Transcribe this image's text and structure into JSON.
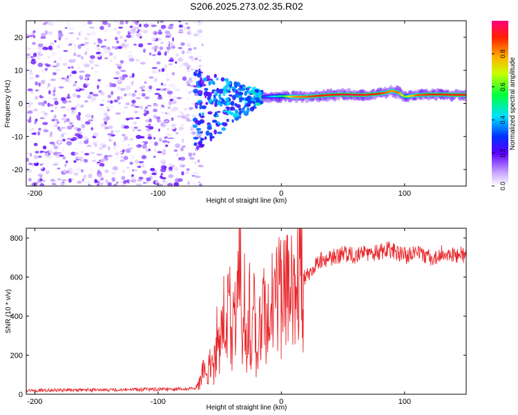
{
  "title": "S206.2025.273.02.35.R02",
  "colors": {
    "snr_line": "#e8262a",
    "axis": "#000000"
  },
  "chart_data": [
    {
      "type": "heatmap",
      "title": "S206.2025.273.02.35.R02",
      "xlabel": "Height of straight line (km)",
      "ylabel": "Frequency (Hz)",
      "xlim": [
        -207,
        150
      ],
      "ylim": [
        -25,
        25
      ],
      "xticks": [
        -200,
        -100,
        0,
        100
      ],
      "yticks": [
        -20,
        -10,
        0,
        10,
        20
      ],
      "xtick_labels": [
        "-200",
        "-100",
        "0",
        "100"
      ],
      "ytick_labels": [
        "-20",
        "-10",
        "0",
        "10",
        "20"
      ],
      "noise_region": {
        "x_from": -207,
        "x_to": -70,
        "amplitude_range": [
          0.0,
          0.2
        ]
      },
      "transition_region": {
        "x_from": -70,
        "x_to": -15,
        "frequency_spread_hz": [
          -12,
          10
        ]
      },
      "ridge": {
        "description": "narrow high-amplitude ridge near 2-3 Hz",
        "x": [
          -15,
          0,
          10,
          20,
          30,
          40,
          50,
          60,
          70,
          80,
          85,
          90,
          95,
          100,
          110,
          120,
          130,
          140,
          150
        ],
        "frequency": [
          2.0,
          2.2,
          2.0,
          2.0,
          2.3,
          2.6,
          2.7,
          2.6,
          2.6,
          3.0,
          3.3,
          3.8,
          3.3,
          2.0,
          2.5,
          2.7,
          2.7,
          2.6,
          2.6
        ],
        "amplitude": [
          0.3,
          0.5,
          0.8,
          0.85,
          0.9,
          0.9,
          0.95,
          0.95,
          0.9,
          0.9,
          0.85,
          0.8,
          0.85,
          0.6,
          0.85,
          0.9,
          0.9,
          0.9,
          0.9
        ]
      },
      "colorbar": {
        "label": "Normalized spectral amplitude",
        "range": [
          0,
          1
        ],
        "ticks": [
          0.0,
          0.2,
          0.4,
          0.6,
          0.8
        ],
        "tick_labels": [
          "0.0",
          "0.2",
          "0.4",
          "0.6",
          "0.8"
        ]
      }
    },
    {
      "type": "line",
      "xlabel": "Height of straight line (km)",
      "ylabel": "SNR (10 * v/v)",
      "xlim": [
        -207,
        150
      ],
      "ylim": [
        0,
        850
      ],
      "xticks": [
        -200,
        -100,
        0,
        100
      ],
      "yticks": [
        0,
        200,
        400,
        600,
        800
      ],
      "xtick_labels": [
        "-200",
        "-100",
        "0",
        "100"
      ],
      "ytick_labels": [
        "0",
        "200",
        "400",
        "600",
        "800"
      ],
      "series": [
        {
          "name": "SNR",
          "color": "#e8262a",
          "x": [
            -207,
            -150,
            -100,
            -70,
            -66,
            -63,
            -60,
            -57,
            -55,
            -52,
            -50,
            -47,
            -45,
            -42,
            -40,
            -38,
            -36,
            -34,
            -32,
            -30,
            -28,
            -26,
            -24,
            -22,
            -20,
            -18,
            -16,
            -14,
            -12,
            -10,
            -8,
            -5,
            -2,
            0,
            5,
            10,
            15,
            20,
            25,
            30,
            40,
            50,
            60,
            70,
            80,
            90,
            95,
            100,
            110,
            120,
            130,
            140,
            150
          ],
          "y": [
            20,
            22,
            25,
            28,
            70,
            150,
            90,
            230,
            120,
            300,
            180,
            420,
            250,
            520,
            300,
            600,
            400,
            850,
            380,
            560,
            250,
            480,
            300,
            540,
            120,
            420,
            300,
            450,
            380,
            400,
            470,
            430,
            500,
            480,
            520,
            560,
            580,
            600,
            650,
            680,
            700,
            720,
            710,
            720,
            730,
            740,
            720,
            710,
            720,
            700,
            720,
            710,
            715
          ]
        }
      ]
    }
  ]
}
